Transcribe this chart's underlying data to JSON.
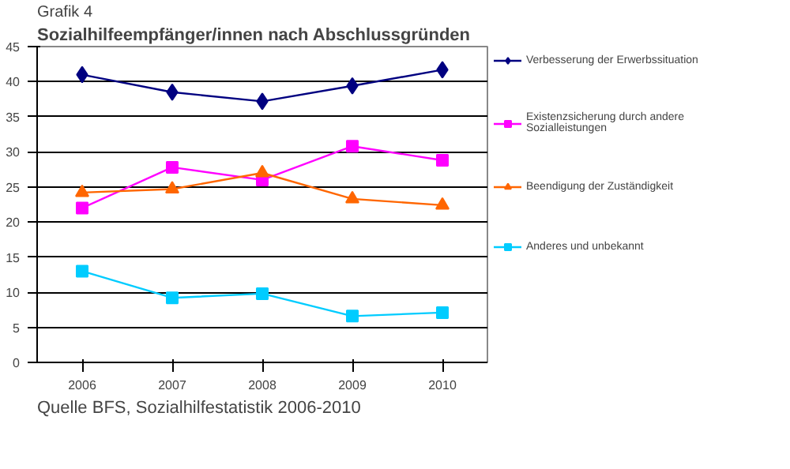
{
  "chart_data": {
    "type": "line",
    "title": "Grafik 4",
    "subtitle": "Sozialhilfeempfänger/innen nach Abschlussgründen",
    "categories": [
      "2006",
      "2007",
      "2008",
      "2009",
      "2010"
    ],
    "series": [
      {
        "name": "Verbesserung der Erwerbssituation",
        "color": "#000080",
        "marker": "diamond",
        "values": [
          41,
          38.5,
          37.2,
          39.4,
          41.7
        ]
      },
      {
        "name": "Existenzsicherung durch andere\nSozialleistungen",
        "color": "#ff00ff",
        "marker": "square",
        "values": [
          22,
          27.8,
          26,
          30.8,
          28.8
        ]
      },
      {
        "name": "Beendigung der Zuständigkeit",
        "color": "#ff6600",
        "marker": "triangle",
        "values": [
          24.2,
          24.7,
          27,
          23.3,
          22.4
        ]
      },
      {
        "name": "Anderes und unbekannt",
        "color": "#00ccff",
        "marker": "square",
        "values": [
          13,
          9.2,
          9.8,
          6.6,
          7.1
        ]
      }
    ],
    "ylim": [
      0,
      45
    ],
    "yticks": [
      0,
      5,
      10,
      15,
      20,
      25,
      30,
      35,
      40,
      45
    ],
    "grid": "y",
    "legend": "right",
    "line_style": "solid",
    "annotations": [
      "Quelle BFS, Sozialhilfestatistik 2006-2010"
    ]
  }
}
